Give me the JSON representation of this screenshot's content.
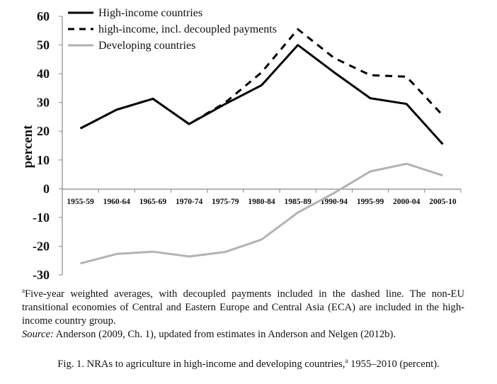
{
  "chart_data": {
    "type": "line",
    "ylabel": "percent",
    "ylim": [
      -30,
      60
    ],
    "yticks": [
      60,
      50,
      40,
      30,
      20,
      10,
      0,
      -10,
      -20,
      -30
    ],
    "grid": false,
    "legend_position": "top-left",
    "categories": [
      "1955-59",
      "1960-64",
      "1965-69",
      "1970-74",
      "1975-79",
      "1980-84",
      "1985-89",
      "1990-94",
      "1995-99",
      "2000-04",
      "2005-10"
    ],
    "series": [
      {
        "name": "High-income countries",
        "style": "solid",
        "color": "#000000",
        "values": [
          21,
          27.5,
          31.3,
          22.5,
          29.5,
          36,
          50,
          40.5,
          31.5,
          29.5,
          15.5
        ]
      },
      {
        "name": "high-income, incl. decoupled payments",
        "style": "dashed",
        "color": "#000000",
        "values": [
          21,
          27.5,
          31.3,
          22.5,
          30,
          40.5,
          55.5,
          45.5,
          39.5,
          39,
          25.5
        ]
      },
      {
        "name": "Developing countries",
        "style": "solid",
        "color": "#b3b3b3",
        "values": [
          -26,
          -22.7,
          -21.9,
          -23.6,
          -22,
          -17.7,
          -8.3,
          -1.5,
          6,
          8.7,
          4.6
        ]
      }
    ]
  },
  "notes": {
    "footnote_marker": "a",
    "footnote": "Five-year weighted averages, with decoupled payments included in the dashed line. The non-EU transitional economies of Central and Eastern Europe and Central Asia (ECA) are included in the high-income country group.",
    "source_label": "Source:",
    "source_text": " Anderson (2009, Ch. 1), updated from estimates in Anderson and Nelgen (2012b)."
  },
  "caption": {
    "text_before": "Fig. 1.  NRAs to agriculture in high-income and developing countries,",
    "marker": "a",
    "text_after": " 1955–2010 (percent)."
  }
}
